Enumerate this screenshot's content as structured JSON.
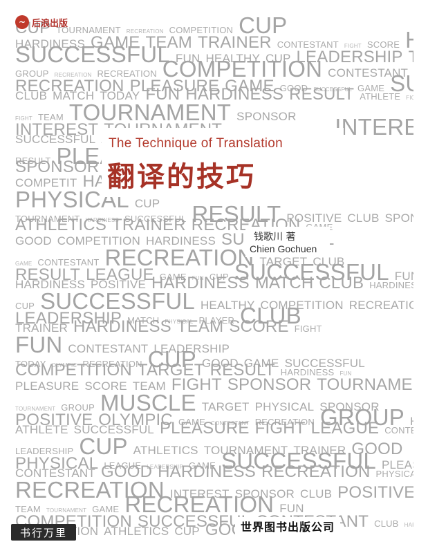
{
  "publisher_logo": {
    "text": "后浪出版",
    "icon": "wave-logo-icon"
  },
  "book": {
    "title_en": "The Technique of Translation",
    "title_cn": "翻译的技巧",
    "author_cn": "钱歌川 著",
    "author_en": "Chien Gochuen",
    "publisher": "世界图书出版公司"
  },
  "watermark": "书行万里",
  "colors": {
    "title": "#a63226",
    "words": "#a5a5a5",
    "background": "#ffffff"
  },
  "background_words": [
    [
      "CUP",
      "TOURNAMENT",
      "RECREATION",
      "COMPETITION",
      "CUP"
    ],
    [
      "HARDINESS",
      "GAME",
      "TEAM",
      "TRAINER",
      "CONTESTANT",
      "FIGHT",
      "SCORE",
      "HARDINESS"
    ],
    [
      "SUCCESSFUL",
      "FUN",
      "HEALTHY",
      "CUP",
      "LEADERSHIP",
      "TEAM",
      "MATCH"
    ],
    [
      "GROUP",
      "RECREATION",
      "RECREATION",
      "COMPETITION",
      "CONTESTANT"
    ],
    [
      "RECREATION",
      "PLEASURE",
      "GAME",
      "GOOD",
      "SUCCESSFUL",
      "GAME",
      "SUCCESSFUL"
    ],
    [
      "CLUB",
      "MATCH",
      "TODAY",
      "FUN",
      "HARDINESS",
      "RESULT",
      "ATHLETE",
      "FIGHT"
    ],
    [
      "FIGHT",
      "TEAM",
      "TOURNAMENT",
      "SPONSOR"
    ],
    [
      "INTEREST",
      "TOURNAMENT",
      "TEAM",
      "PHYSICAL",
      "TARGET",
      "INTEREST",
      "MUSCLE"
    ],
    [
      "SUCCESSFUL",
      "ATION",
      "GOOD"
    ],
    [
      "RESULT",
      "PLEASURE",
      "CUP"
    ],
    [
      "SPONSOR",
      "ATHLETICS"
    ],
    [
      "COMPETIT",
      "HARDINESS"
    ],
    [
      "PHYSICAL",
      "CUP"
    ],
    [
      "TOURNAMENT",
      "HARDINESS",
      "SUCCESSFUL",
      "RESULT",
      "POSITIVE",
      "CLUB",
      "SPONSOR"
    ],
    [
      "ATHLETICS",
      "TRAINER",
      "RECREATION",
      "GAME"
    ],
    [
      "GOOD",
      "COMPETITION",
      "HARDINESS",
      "SUCCESSFUL"
    ],
    [
      "GAME",
      "CONTESTANT",
      "RECREATION",
      "TARGET",
      "CLUB"
    ],
    [
      "RESULT",
      "LEAGUE",
      "GAME",
      "FUN",
      "CUP",
      "SUCCESSFUL",
      "FUN",
      "PHYSICAL"
    ],
    [
      "HARDINESS",
      "POSITIVE",
      "HARDINESS",
      "MATCH",
      "CLUB",
      "HARDINESS",
      "HEALTHY"
    ],
    [
      "CUP",
      "SUCCESSFUL",
      "HEALTHY",
      "COMPETITION",
      "RECREATION"
    ],
    [
      "LEADERSHIP",
      "MATCH",
      "PHYSICAL",
      "PLAYER",
      "CLUB"
    ],
    [
      "TRAINER",
      "HARDINESS",
      "TEAM",
      "SCORE",
      "FIGHT"
    ],
    [
      "FUN",
      "CONTESTANT",
      "LEADERSHIP"
    ],
    [
      "TODAY",
      "OLYMPIC",
      "RECREATION",
      "CUP",
      "GOOD",
      "GAME",
      "SUCCESSFUL"
    ],
    [
      "COMPETITION",
      "TARGET",
      "RESULT",
      "HARDINESS",
      "FUN"
    ],
    [
      "PLEASURE",
      "SCORE",
      "TEAM",
      "FIGHT",
      "SPONSOR",
      "TOURNAMENT",
      "TEAM"
    ],
    [
      "TOURNAMENT",
      "GROUP",
      "MUSCLE",
      "TARGET",
      "PHYSICAL",
      "SPONSOR"
    ],
    [
      "POSITIVE",
      "OLYMPIC",
      "GAME",
      "CONTESTANT",
      "RECREATION",
      "GROUP",
      "HARDINESS"
    ],
    [
      "ATHLETE",
      "SUCCESSFUL",
      "PLEASURE",
      "FIGHT",
      "LEAGUE",
      "CONTESTANT",
      "CUP"
    ],
    [
      "LEADERSHIP",
      "CUP",
      "ATHLETICS",
      "TOURNAMENT",
      "TRAINER",
      "GOOD"
    ],
    [
      "PHYSICAL",
      "LEAGUE",
      "LEADERSHIP",
      "GAME",
      "SUCCESSFUL",
      "PLEASURE",
      "CLUB"
    ],
    [
      "CONTESTANT",
      "GOOD",
      "HARDINESS",
      "RECREATION",
      "PHYSICAL",
      "COMPETITION",
      "ATHLETICS"
    ],
    [
      "RECREATION",
      "INTEREST",
      "SPONSOR",
      "CLUB",
      "POSITIVE",
      "RESULT",
      "GAME"
    ],
    [
      "TEAM",
      "TOURNAMENT",
      "GAME",
      "RECREATION",
      "FUN"
    ],
    [
      "COMPETITION",
      "SUCCESSFUL",
      "CONTESTANT",
      "CLUB",
      "HARDINESS",
      "LEADERSHIP",
      "CONTESTANT",
      "GOOD",
      "PLAYER"
    ],
    [
      "COMPETITION",
      "ATHLETICS",
      "CUP",
      "GOOD"
    ]
  ]
}
